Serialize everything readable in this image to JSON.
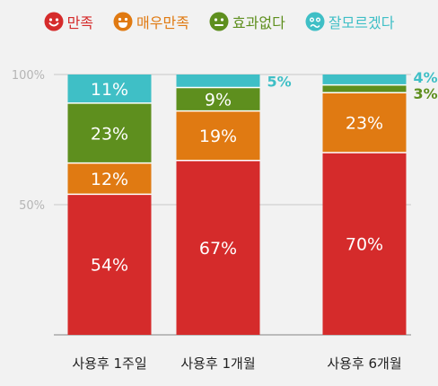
{
  "legend": [
    {
      "label": "만족",
      "color": "#d52b2b",
      "icon": "smile-face-icon"
    },
    {
      "label": "매우만족",
      "color": "#e07a12",
      "icon": "big-smile-face-icon"
    },
    {
      "label": "효과없다",
      "color": "#5e8f1e",
      "icon": "neutral-face-icon"
    },
    {
      "label": "잘모르겠다",
      "color": "#3fbfc6",
      "icon": "confused-face-icon"
    }
  ],
  "chart_data": {
    "type": "bar",
    "stacked": true,
    "categories": [
      "사용후 1주일",
      "사용후 1개월",
      "사용후 6개월"
    ],
    "series": [
      {
        "name": "만족",
        "color": "#d52b2b",
        "values": [
          54,
          67,
          70
        ],
        "labels": [
          "54%",
          "67%",
          "70%"
        ]
      },
      {
        "name": "매우만족",
        "color": "#e07a12",
        "values": [
          12,
          19,
          23
        ],
        "labels": [
          "12%",
          "19%",
          "23%"
        ]
      },
      {
        "name": "효과없다",
        "color": "#5e8f1e",
        "values": [
          23,
          9,
          3
        ],
        "labels": [
          "23%",
          "9%",
          "3%"
        ]
      },
      {
        "name": "잘모르겠다",
        "color": "#3fbfc6",
        "values": [
          11,
          5,
          4
        ],
        "labels": [
          "11%",
          "5%",
          "4%"
        ]
      }
    ],
    "label_outside": [
      [
        false,
        false,
        false,
        false
      ],
      [
        false,
        false,
        false,
        true
      ],
      [
        false,
        false,
        true,
        true
      ]
    ],
    "ylim": [
      0,
      100
    ],
    "yticks": [
      {
        "value": 100,
        "label": "100%"
      },
      {
        "value": 50,
        "label": "50%"
      }
    ],
    "grid": true,
    "legend_position": "top"
  }
}
